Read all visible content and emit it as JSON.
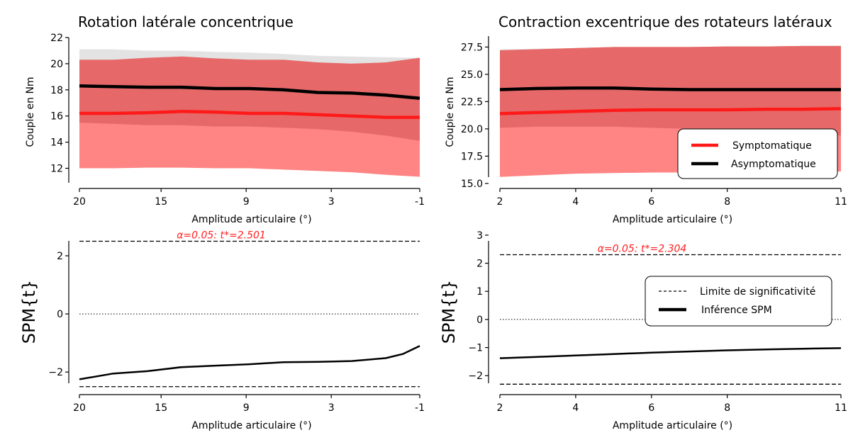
{
  "chart_data": [
    {
      "type": "line",
      "panel": "top-left",
      "title": "Rotation latérale concentrique",
      "xlabel": "Amplitude articulaire (°)",
      "ylabel": "Couple en Nm",
      "xlim": [
        0,
        100
      ],
      "ylim": [
        11,
        22
      ],
      "xticks": [
        0,
        24,
        49,
        74,
        100
      ],
      "xticklabels": [
        "20",
        "15",
        "9",
        "3",
        "-1"
      ],
      "yticks": [
        12,
        14,
        16,
        18,
        20,
        22
      ],
      "yticklabels": [
        "12",
        "14",
        "16",
        "18",
        "20",
        "22"
      ],
      "x": [
        0,
        10,
        20,
        30,
        40,
        50,
        60,
        70,
        80,
        90,
        100
      ],
      "series": [
        {
          "name": "Asymptomatique",
          "color": "#000000",
          "values": [
            18.3,
            18.25,
            18.2,
            18.2,
            18.1,
            18.1,
            18.0,
            17.8,
            17.75,
            17.6,
            17.35
          ],
          "band_upper": [
            21.1,
            21.1,
            21.0,
            21.0,
            20.9,
            20.85,
            20.75,
            20.6,
            20.55,
            20.5,
            20.45
          ],
          "band_lower": [
            15.5,
            15.4,
            15.3,
            15.3,
            15.2,
            15.2,
            15.1,
            15.0,
            14.8,
            14.5,
            14.1
          ],
          "band_color": "#d9d9d9"
        },
        {
          "name": "Symptomatique",
          "color": "#ff1a1a",
          "values": [
            16.2,
            16.2,
            16.25,
            16.35,
            16.3,
            16.2,
            16.2,
            16.1,
            16.0,
            15.9,
            15.9
          ],
          "band_upper": [
            20.3,
            20.3,
            20.45,
            20.55,
            20.4,
            20.3,
            20.3,
            20.1,
            20.0,
            20.1,
            20.45
          ],
          "band_lower": [
            12.0,
            12.0,
            12.05,
            12.05,
            12.0,
            12.0,
            11.9,
            11.8,
            11.7,
            11.5,
            11.35
          ],
          "band_color": "#ff6f6f"
        }
      ],
      "grid": false
    },
    {
      "type": "line",
      "panel": "top-right",
      "title": "Contraction excentrique des rotateurs latéraux",
      "xlabel": "Amplitude articulaire (°)",
      "ylabel": "Couple en Nm",
      "xlim": [
        2,
        11
      ],
      "ylim": [
        14.8,
        28.5
      ],
      "xticks": [
        2,
        4,
        6,
        8,
        11
      ],
      "xticklabels": [
        "2",
        "4",
        "6",
        "8",
        "11"
      ],
      "yticks": [
        15.0,
        17.5,
        20.0,
        22.5,
        25.0,
        27.5
      ],
      "yticklabels": [
        "15.0",
        "17.5",
        "20.0",
        "22.5",
        "25.0",
        "27.5"
      ],
      "x": [
        2,
        3,
        4,
        5,
        6,
        7,
        8,
        9,
        10,
        11
      ],
      "series": [
        {
          "name": "Asymptomatique",
          "color": "#000000",
          "values": [
            23.6,
            23.7,
            23.75,
            23.75,
            23.65,
            23.6,
            23.6,
            23.6,
            23.6,
            23.6
          ],
          "band_upper": [
            27.3,
            27.35,
            27.4,
            27.5,
            27.5,
            27.5,
            27.55,
            27.55,
            27.6,
            27.6
          ],
          "band_lower": [
            20.1,
            20.2,
            20.2,
            20.2,
            20.1,
            20.0,
            19.9,
            19.8,
            19.6,
            19.4
          ],
          "band_color": "#d9d9d9"
        },
        {
          "name": "Symptomatique",
          "color": "#ff1a1a",
          "values": [
            21.4,
            21.5,
            21.6,
            21.7,
            21.75,
            21.75,
            21.75,
            21.8,
            21.8,
            21.85
          ],
          "band_upper": [
            27.2,
            27.3,
            27.4,
            27.5,
            27.5,
            27.5,
            27.55,
            27.55,
            27.6,
            27.6
          ],
          "band_lower": [
            15.6,
            15.75,
            15.9,
            15.95,
            16.0,
            16.0,
            16.05,
            16.05,
            16.05,
            16.1
          ],
          "band_color": "#ff6f6f"
        }
      ],
      "legend": {
        "placement": "lower-right",
        "entries": [
          "Symptomatique",
          "Asymptomatique"
        ]
      },
      "grid": false
    },
    {
      "type": "line",
      "panel": "bottom-left",
      "xlabel": "Amplitude articulaire (°)",
      "ylabel": "SPM{t}",
      "xlim": [
        0,
        100
      ],
      "ylim": [
        -2.8,
        3.0
      ],
      "xticks": [
        0,
        24,
        49,
        74,
        100
      ],
      "xticklabels": [
        "20",
        "15",
        "9",
        "3",
        "-1"
      ],
      "yticks": [
        -2,
        0,
        2
      ],
      "yticklabels": [
        "−2",
        "0",
        "2"
      ],
      "threshold": 2.501,
      "annotation": "α=0.05:  t*=2.501",
      "x": [
        0,
        10,
        20,
        30,
        40,
        50,
        60,
        70,
        80,
        90,
        95,
        100
      ],
      "series": [
        {
          "name": "Inférence SPM",
          "color": "#000000",
          "values": [
            -2.25,
            -2.05,
            -1.97,
            -1.83,
            -1.78,
            -1.73,
            -1.66,
            -1.65,
            -1.62,
            -1.52,
            -1.38,
            -1.1
          ]
        }
      ],
      "grid": false
    },
    {
      "type": "line",
      "panel": "bottom-right",
      "xlabel": "Amplitude articulaire (°)",
      "ylabel": "SPM{t}",
      "xlim": [
        2,
        11
      ],
      "ylim": [
        -2.7,
        3.3
      ],
      "xticks": [
        2,
        4,
        6,
        8,
        11
      ],
      "xticklabels": [
        "2",
        "4",
        "6",
        "8",
        "11"
      ],
      "yticks": [
        -2,
        -1,
        0,
        1,
        2,
        3
      ],
      "yticklabels": [
        "−2",
        "−1",
        "0",
        "1",
        "2",
        "3"
      ],
      "threshold": 2.304,
      "annotation": "α=0.05:  t*=2.304",
      "x": [
        2,
        3,
        4,
        5,
        6,
        7,
        8,
        9,
        10,
        11
      ],
      "series": [
        {
          "name": "Inférence SPM",
          "color": "#000000",
          "values": [
            -1.38,
            -1.33,
            -1.28,
            -1.23,
            -1.18,
            -1.14,
            -1.1,
            -1.07,
            -1.04,
            -1.02
          ]
        }
      ],
      "legend": {
        "placement": "center-right",
        "entries": [
          "Limite de significativité",
          "Inférence SPM"
        ]
      },
      "grid": false
    }
  ]
}
